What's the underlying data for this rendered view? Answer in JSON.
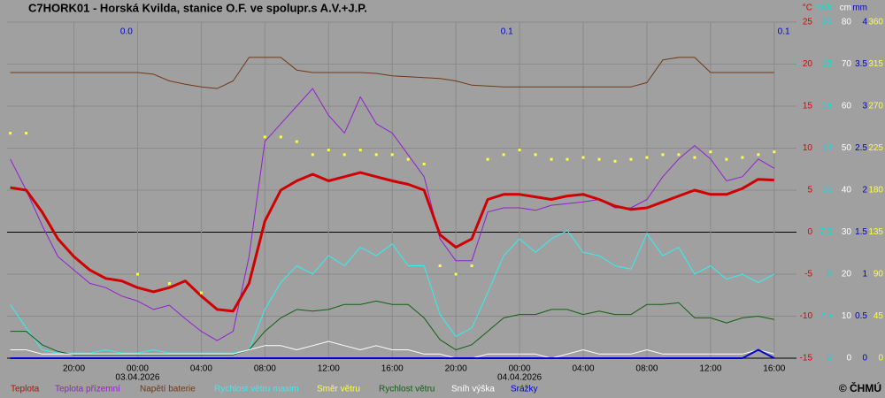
{
  "chart_data": {
    "type": "line",
    "title": "C7HORK01 - Horská Kvilda, stanice O.F. ve spolupr.s A.V.+J.P.",
    "credit": "© ČHMÚ",
    "x": [
      16,
      17,
      18,
      19,
      20,
      21,
      22,
      23,
      24,
      25,
      26,
      27,
      28,
      29,
      30,
      31,
      32,
      33,
      34,
      35,
      36,
      37,
      38,
      39,
      40,
      41,
      42,
      43,
      44,
      45,
      46,
      47,
      48,
      49,
      50,
      51,
      52,
      53,
      54,
      55,
      56,
      57,
      58,
      59,
      60,
      61,
      62,
      63,
      64
    ],
    "xlim": [
      15.8,
      65.4
    ],
    "xticks": [
      {
        "value": 20,
        "label": "20:00"
      },
      {
        "value": 24,
        "label": "00:00"
      },
      {
        "value": 28,
        "label": "04:00"
      },
      {
        "value": 32,
        "label": "08:00"
      },
      {
        "value": 36,
        "label": "12:00"
      },
      {
        "value": 40,
        "label": "16:00"
      },
      {
        "value": 44,
        "label": "20:00"
      },
      {
        "value": 48,
        "label": "00:00"
      },
      {
        "value": 52,
        "label": "04:00"
      },
      {
        "value": 56,
        "label": "08:00"
      },
      {
        "value": 60,
        "label": "12:00"
      },
      {
        "value": 64,
        "label": "16:00"
      }
    ],
    "date_labels": [
      {
        "value": 24,
        "label": "03.04.2026"
      },
      {
        "value": 48,
        "label": "04.04.2026"
      }
    ],
    "zero_line": true,
    "y_axes": [
      {
        "unit": "°C",
        "color": "#e00000",
        "lim": [
          -15,
          25
        ],
        "ticks": [
          -15,
          -10,
          -5,
          0,
          5,
          10,
          15,
          20,
          25
        ]
      },
      {
        "unit": "m/s",
        "color": "#00e0e0",
        "lim": [
          0,
          20
        ],
        "ticks": [
          0,
          2.5,
          5,
          7.5,
          10,
          {
            "value": 12.5,
            "label": "13"
          },
          15,
          {
            "value": 17.5,
            "label": "18"
          },
          20
        ]
      },
      {
        "unit": "cm",
        "color": "#ffffff",
        "lim": [
          0,
          80
        ],
        "ticks": [
          0,
          10,
          20,
          30,
          40,
          50,
          60,
          70,
          80
        ]
      },
      {
        "unit": "mm",
        "color": "#0000c0",
        "lim": [
          0,
          4
        ],
        "ticks": [
          0,
          0.5,
          1,
          1.5,
          2,
          2.5,
          3,
          3.5,
          4
        ]
      },
      {
        "color": "#ffff40",
        "lim": [
          0,
          360
        ],
        "ticks": [
          0,
          45,
          90,
          135,
          180,
          225,
          270,
          315,
          360
        ]
      }
    ],
    "annotations": [
      {
        "x": 23.3,
        "text": "0.0"
      },
      {
        "x": 47.2,
        "text": "0.1"
      },
      {
        "x": 64.6,
        "text": "0.1"
      }
    ],
    "series": [
      {
        "name": "Napětí baterie",
        "color": "#703818",
        "axis": 0,
        "width": 1,
        "values": [
          19.0,
          19.0,
          19.0,
          19.0,
          19.0,
          19.0,
          19.0,
          19.0,
          19.0,
          18.8,
          18.0,
          17.6,
          17.3,
          17.1,
          18.0,
          20.8,
          20.8,
          20.8,
          19.3,
          19.0,
          19.0,
          19.0,
          19.0,
          18.9,
          18.6,
          18.5,
          18.4,
          18.3,
          18.0,
          17.5,
          17.4,
          17.3,
          17.3,
          17.3,
          17.3,
          17.3,
          17.3,
          17.3,
          17.3,
          17.3,
          17.8,
          20.5,
          20.8,
          20.8,
          19.0,
          19.0,
          19.0,
          19.0,
          19.0
        ]
      },
      {
        "name": "Teplota přízemní",
        "color": "#9020d0",
        "axis": 0,
        "width": 1,
        "values": [
          8.7,
          5.0,
          0.8,
          -2.9,
          -4.5,
          -6.1,
          -6.6,
          -7.6,
          -8.2,
          -9.2,
          -8.7,
          -10.3,
          -11.8,
          -12.9,
          -11.8,
          -2.9,
          10.8,
          12.9,
          15.0,
          17.1,
          13.9,
          11.8,
          16.1,
          12.9,
          11.8,
          9.2,
          6.6,
          -0.8,
          -3.4,
          -3.4,
          2.4,
          2.9,
          2.9,
          2.6,
          3.2,
          3.4,
          3.6,
          3.9,
          2.9,
          2.9,
          3.9,
          6.6,
          8.7,
          10.3,
          8.7,
          6.1,
          6.6,
          8.7,
          7.6
        ]
      },
      {
        "name": "Rychlost větru maxim",
        "color": "#30f0f0",
        "axis": 1,
        "width": 1,
        "values": [
          3.2,
          1.8,
          0.5,
          0.3,
          0.3,
          0.3,
          0.5,
          0.3,
          0.3,
          0.5,
          0.3,
          0.3,
          0.3,
          0.3,
          0.3,
          0.5,
          2.9,
          4.5,
          5.5,
          5.0,
          6.1,
          5.5,
          6.6,
          6.1,
          6.8,
          5.5,
          5.5,
          2.6,
          1.3,
          1.8,
          3.9,
          6.1,
          7.1,
          6.3,
          7.1,
          7.6,
          6.3,
          6.1,
          5.5,
          5.3,
          7.4,
          6.1,
          6.6,
          5.0,
          5.5,
          4.7,
          5.0,
          4.5,
          5.0
        ]
      },
      {
        "name": "Rychlost větru",
        "color": "#106010",
        "axis": 1,
        "width": 1,
        "values": [
          1.6,
          1.6,
          0.8,
          0.4,
          0.2,
          0.2,
          0.2,
          0.2,
          0.2,
          0.2,
          0.2,
          0.2,
          0.2,
          0.2,
          0.2,
          0.5,
          1.6,
          2.4,
          2.9,
          2.8,
          2.9,
          3.2,
          3.2,
          3.4,
          3.2,
          3.2,
          2.4,
          1.1,
          0.5,
          0.8,
          1.6,
          2.4,
          2.6,
          2.6,
          2.9,
          2.9,
          2.6,
          2.8,
          2.6,
          2.6,
          3.2,
          3.2,
          3.3,
          2.4,
          2.4,
          2.1,
          2.4,
          2.5,
          2.3
        ]
      },
      {
        "name": "Sníh výška",
        "color": "#ffffff",
        "axis": 2,
        "width": 1,
        "values": [
          2,
          2,
          1,
          1,
          1,
          1,
          1,
          1,
          1,
          1,
          1,
          1,
          1,
          1,
          1,
          2,
          3,
          3,
          2,
          3,
          4,
          3,
          2,
          3,
          2,
          2,
          1,
          1,
          0,
          0,
          1,
          1,
          1,
          1,
          0,
          1,
          2,
          1,
          1,
          1,
          2,
          1,
          1,
          1,
          1,
          1,
          1,
          2,
          1
        ]
      },
      {
        "name": "Srážky",
        "color": "#0000d0",
        "axis": 3,
        "width": 2,
        "values": [
          0,
          0,
          0,
          0,
          0,
          0,
          0,
          0,
          0,
          0,
          0,
          0,
          0,
          0,
          0,
          0,
          0,
          0,
          0,
          0,
          0,
          0,
          0,
          0,
          0,
          0,
          0,
          0,
          0,
          0,
          0,
          0,
          0,
          0,
          0,
          0,
          0,
          0,
          0,
          0,
          0,
          0,
          0,
          0,
          0,
          0,
          0,
          0.1,
          0
        ]
      },
      {
        "name": "Teplota",
        "color": "#d00000",
        "axis": 0,
        "width": 3,
        "values": [
          5.3,
          5.0,
          2.4,
          -0.8,
          -2.9,
          -4.5,
          -5.5,
          -5.8,
          -6.6,
          -7.1,
          -6.6,
          -5.8,
          -7.6,
          -9.2,
          -9.4,
          -6.1,
          1.3,
          5.0,
          6.1,
          6.9,
          6.1,
          6.6,
          7.1,
          6.6,
          6.1,
          5.7,
          5.0,
          -0.3,
          -1.8,
          -0.8,
          3.9,
          4.5,
          4.5,
          4.2,
          3.9,
          4.3,
          4.5,
          3.9,
          3.1,
          2.7,
          2.9,
          3.6,
          4.3,
          5.0,
          4.5,
          4.5,
          5.2,
          6.3,
          6.2
        ]
      },
      {
        "name": "Směr větru",
        "color": "#ffff40",
        "axis": 4,
        "style": "dots",
        "values": [
          241,
          241,
          null,
          null,
          null,
          null,
          null,
          null,
          90,
          null,
          80,
          null,
          70,
          null,
          null,
          null,
          237,
          237,
          232,
          218,
          223,
          218,
          223,
          218,
          218,
          213,
          208,
          99,
          90,
          99,
          213,
          218,
          223,
          218,
          213,
          213,
          215,
          213,
          211,
          213,
          215,
          218,
          218,
          215,
          221,
          213,
          215,
          218,
          221
        ]
      }
    ],
    "legend_order": [
      "Teplota",
      "Teplota přízemní",
      "Napětí baterie",
      "Rychlost větru maxim",
      "Směr větru",
      "Rychlost větru",
      "Sníh výška",
      "Srážky"
    ]
  }
}
